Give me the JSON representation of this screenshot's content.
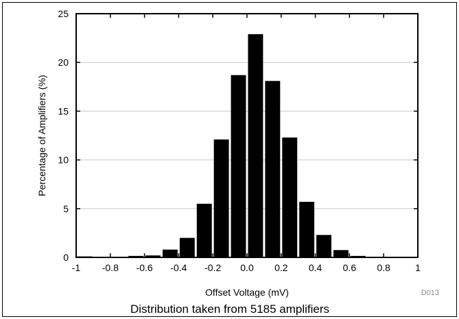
{
  "chart_data": {
    "type": "bar",
    "title": "",
    "xlabel": "Offset Voltage (mV)",
    "ylabel": "Percentage of Amplifiers (%)",
    "xlim": [
      -1,
      1
    ],
    "ylim": [
      0,
      25
    ],
    "bin_width": 0.1,
    "x_ticks": [
      -1,
      -0.8,
      -0.6,
      -0.4,
      -0.2,
      0,
      0.2,
      0.4,
      0.6,
      0.8,
      1
    ],
    "x_tick_labels": [
      "-1",
      "-0.8",
      "-0.6",
      "-0.4",
      "-0.2",
      "0.0",
      "0.2",
      "0.4",
      "0.6",
      "0.8",
      "1"
    ],
    "y_ticks": [
      0,
      5,
      10,
      15,
      20,
      25
    ],
    "y_tick_labels": [
      "0",
      "5",
      "10",
      "15",
      "20",
      "25"
    ],
    "grid": true,
    "bin_starts": [
      -1.0,
      -0.9,
      -0.8,
      -0.7,
      -0.6,
      -0.5,
      -0.4,
      -0.3,
      -0.2,
      -0.1,
      0.0,
      0.1,
      0.2,
      0.3,
      0.4,
      0.5,
      0.6,
      0.7,
      0.8,
      0.9
    ],
    "values": [
      0.1,
      0.05,
      0.05,
      0.15,
      0.2,
      0.8,
      2.0,
      5.5,
      12.1,
      18.7,
      22.9,
      18.1,
      12.3,
      5.7,
      2.3,
      0.75,
      0.15,
      0.05,
      0.05,
      0.05
    ],
    "bar_color": "#000000",
    "grid_color": "#c8c8c8"
  },
  "figure_code": "D013",
  "caption": "Distribution taken from 5185 amplifiers"
}
